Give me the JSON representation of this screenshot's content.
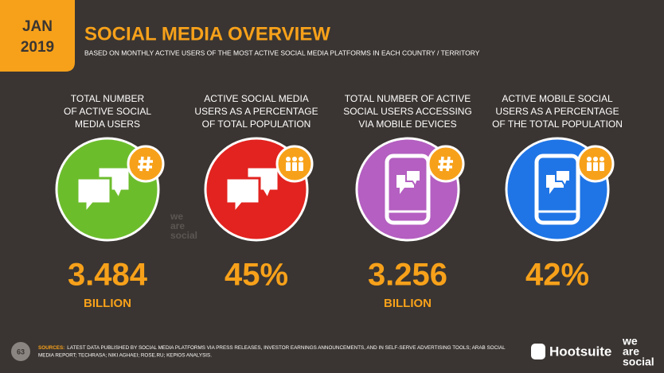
{
  "header": {
    "month": "JAN",
    "year": "2019",
    "title": "SOCIAL MEDIA OVERVIEW",
    "subtitle": "BASED ON MONTHLY ACTIVE USERS OF THE MOST ACTIVE SOCIAL MEDIA PLATFORMS IN EACH COUNTRY / TERRITORY"
  },
  "stats": [
    {
      "label": [
        "TOTAL NUMBER",
        "OF ACTIVE SOCIAL",
        "MEDIA USERS"
      ],
      "value": "3.484",
      "unit": "BILLION",
      "color": "#6cbd2c"
    },
    {
      "label": [
        "ACTIVE SOCIAL MEDIA",
        "USERS AS A PERCENTAGE",
        "OF TOTAL POPULATION"
      ],
      "value": "45%",
      "color": "#e2231f"
    },
    {
      "label": [
        "TOTAL NUMBER OF ACTIVE",
        "SOCIAL USERS ACCESSING",
        "VIA MOBILE DEVICES"
      ],
      "value": "3.256",
      "unit": "BILLION",
      "color": "#b45fc1"
    },
    {
      "label": [
        "ACTIVE MOBILE SOCIAL",
        "USERS AS A PERCENTAGE",
        "OF THE TOTAL POPULATION"
      ],
      "value": "42%",
      "color": "#1f75e6"
    }
  ],
  "watermark": [
    "we",
    "are",
    "social"
  ],
  "footer": {
    "page": "63",
    "sources_label": "SOURCES:",
    "sources": [
      "LATEST DATA PUBLISHED BY SOCIAL MEDIA PLATFORMS VIA PRESS RELEASES, INVESTOR EARNINGS ANNOUNCEMENTS, AND IN SELF-SERVE ADVERTISING TOOLS; ARAB SOCIAL",
      "MEDIA REPORT; TECHRASA; NIKI AGHAEI; ROSE.RU; KEPIOS ANALYSIS."
    ],
    "brand": "Hootsuite",
    "brand2": [
      "we",
      "are",
      "social"
    ]
  }
}
